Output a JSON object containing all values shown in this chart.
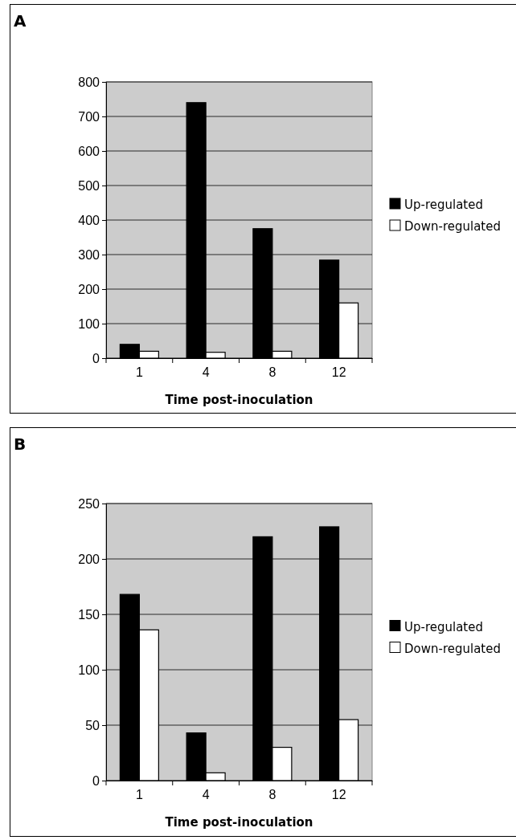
{
  "chart_data": [
    {
      "type": "bar",
      "title": "A",
      "xlabel": "Time post-inoculation",
      "categories": [
        "1",
        "4",
        "8",
        "12"
      ],
      "series": [
        {
          "name": "Up-regulated",
          "color": "#000000",
          "values": [
            40,
            740,
            375,
            284
          ]
        },
        {
          "name": "Down-regulated",
          "color": "#ffffff",
          "values": [
            20,
            17,
            20,
            160
          ]
        }
      ],
      "ylim": [
        0,
        800
      ],
      "yticks": [
        0,
        100,
        200,
        300,
        400,
        500,
        600,
        700,
        800
      ],
      "grid": "y",
      "legend": "right"
    },
    {
      "type": "bar",
      "title": "B",
      "xlabel": "Time post-inoculation",
      "categories": [
        "1",
        "4",
        "8",
        "12"
      ],
      "series": [
        {
          "name": "Up-regulated",
          "color": "#000000",
          "values": [
            168,
            43,
            220,
            229
          ]
        },
        {
          "name": "Down-regulated",
          "color": "#ffffff",
          "values": [
            136,
            7,
            30,
            55
          ]
        }
      ],
      "ylim": [
        0,
        250
      ],
      "yticks": [
        0,
        50,
        100,
        150,
        200,
        250
      ],
      "grid": "y",
      "legend": "right"
    }
  ]
}
